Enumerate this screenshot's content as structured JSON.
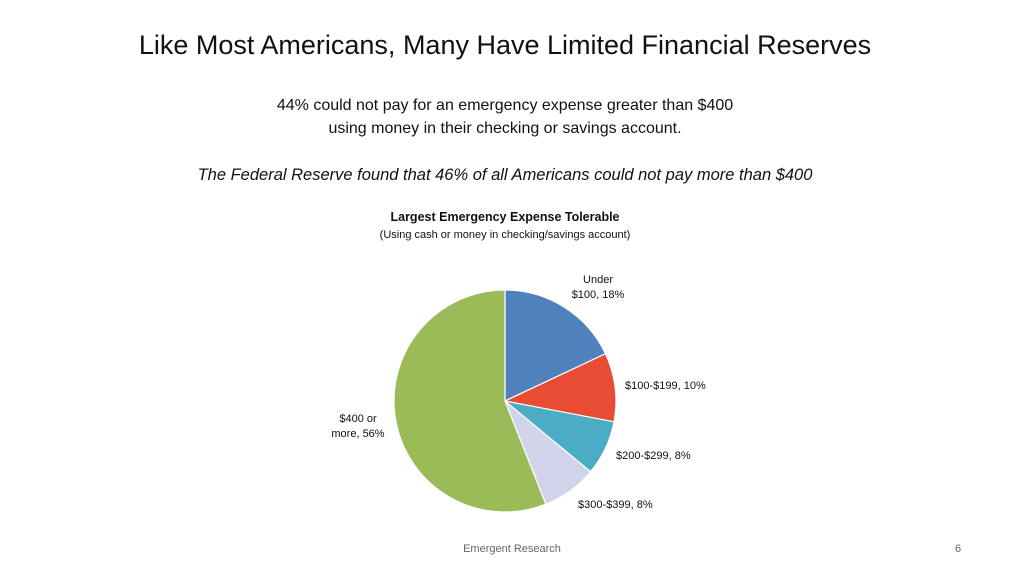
{
  "slide": {
    "title": "Like Most Americans, Many Have Limited Financial Reserves",
    "subtitle_line1": "44% could not pay for an emergency expense greater than $400",
    "subtitle_line2": "using money in their checking or savings account.",
    "fed_note": "The Federal Reserve found that 46% of all Americans could not pay more than $400",
    "footer": "Emergent Research",
    "page_number": "6"
  },
  "chart_data": {
    "type": "pie",
    "title": "Largest Emergency Expense Tolerable",
    "subtitle": "(Using cash or money in checking/savings account)",
    "slices": [
      {
        "name": "Under $100",
        "value": 18,
        "color": "#4f81bd",
        "label_lines": [
          "Under",
          "$100, 18%"
        ]
      },
      {
        "name": "$100-$199",
        "value": 10,
        "color": "#e84c35",
        "label_lines": [
          "$100-$199, 10%"
        ]
      },
      {
        "name": "$200-$299",
        "value": 8,
        "color": "#4bacc6",
        "label_lines": [
          "$200-$299, 8%"
        ]
      },
      {
        "name": "$300-$399",
        "value": 8,
        "color": "#d0d3ea",
        "label_lines": [
          "$300-$399, 8%"
        ]
      },
      {
        "name": "$400 or more",
        "value": 56,
        "color": "#9bbb59",
        "label_lines": [
          "$400 or",
          "more, 56%"
        ]
      }
    ]
  }
}
